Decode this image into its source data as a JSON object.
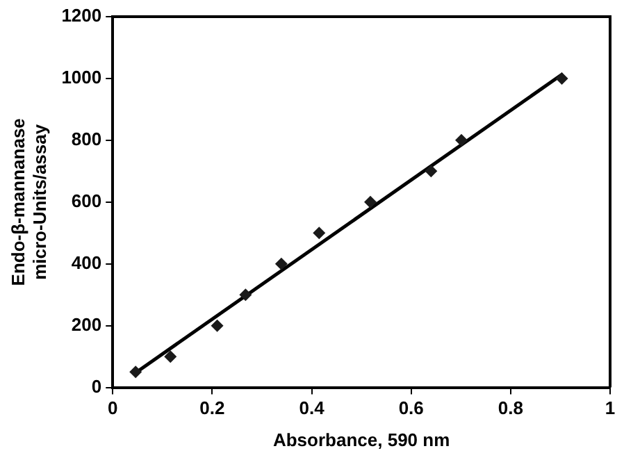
{
  "chart_data": {
    "type": "scatter",
    "xlabel": "Absorbance, 590 nm",
    "ylabel": "Endo-β-mannanase\nmicro-Units/assay",
    "xlim": [
      0,
      1
    ],
    "xticks": [
      0,
      0.2,
      0.4,
      0.6,
      0.8,
      1
    ],
    "ylim": [
      0,
      1200
    ],
    "yticks": [
      0,
      200,
      400,
      600,
      800,
      1000,
      1200
    ],
    "grid": false,
    "legend": false,
    "series": [
      {
        "type": "scatter",
        "marker": "diamond",
        "color": "#1a1a1a",
        "x": [
          0.046,
          0.116,
          0.21,
          0.267,
          0.339,
          0.415,
          0.518,
          0.64,
          0.701,
          0.903
        ],
        "values": [
          50,
          100,
          200,
          300,
          400,
          500,
          600,
          700,
          800,
          1000
        ]
      },
      {
        "type": "line",
        "marker": "none",
        "color": "#000000",
        "x": [
          0.042,
          0.905
        ],
        "values": [
          43,
          1015
        ]
      }
    ]
  }
}
